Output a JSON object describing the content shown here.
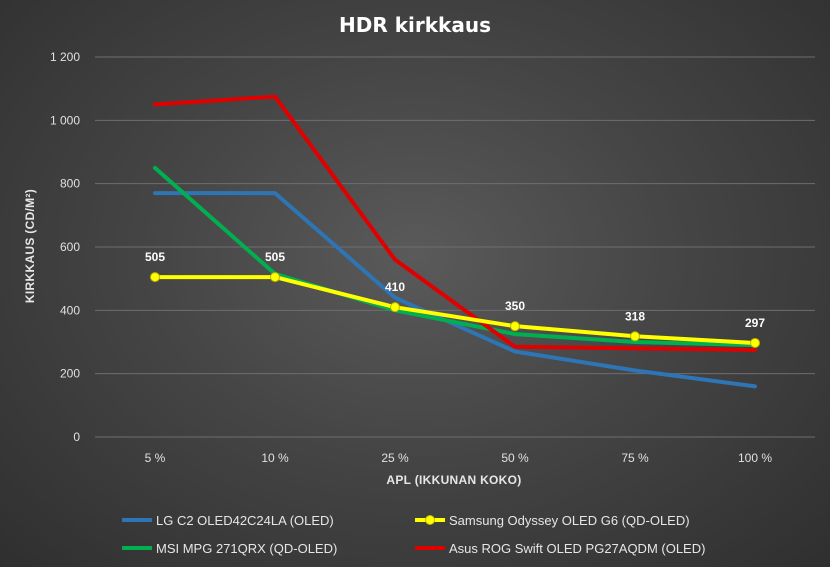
{
  "chart_data": {
    "type": "line",
    "title": "HDR kirkkaus",
    "xlabel": "APL (IKKUNAN KOKO)",
    "ylabel": "KIRKKAUS (CD/M²)",
    "categories": [
      "5 %",
      "10 %",
      "25 %",
      "50 %",
      "75 %",
      "100 %"
    ],
    "ylim": [
      0,
      1200
    ],
    "yticks": [
      0,
      200,
      400,
      600,
      800,
      1000,
      1200
    ],
    "ytick_labels": [
      "0",
      "200",
      "400",
      "600",
      "800",
      "1 000",
      "1 200"
    ],
    "grid": true,
    "legend_position": "bottom",
    "series": [
      {
        "name": "LG C2 OLED42C24LA (OLED)",
        "color": "#2e75b6",
        "values": [
          770,
          770,
          440,
          270,
          210,
          160
        ],
        "markers": false,
        "show_labels": false
      },
      {
        "name": "Samsung Odyssey OLED G6 (QD-OLED)",
        "color": "#ffff00",
        "legend_text_color": "#00b050",
        "values": [
          505,
          505,
          410,
          350,
          318,
          297
        ],
        "markers": true,
        "show_labels": true
      },
      {
        "name": "MSI MPG 271QRX (QD-OLED)",
        "color": "#00b050",
        "values": [
          850,
          515,
          400,
          325,
          300,
          290
        ],
        "markers": false,
        "show_labels": false
      },
      {
        "name": "Asus ROG Swift OLED PG27AQDM (OLED)",
        "color": "#e00000",
        "values": [
          1050,
          1075,
          560,
          285,
          280,
          275
        ],
        "markers": false,
        "show_labels": false
      }
    ]
  }
}
